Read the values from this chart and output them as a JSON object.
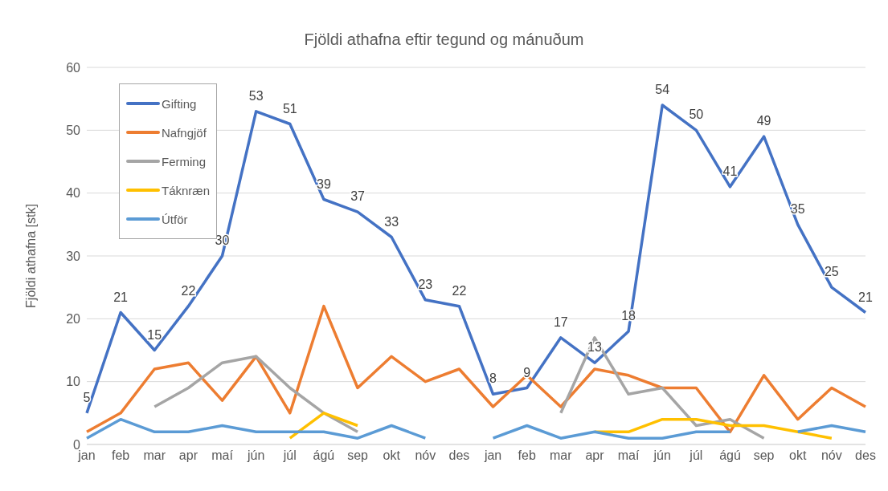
{
  "chart_data": {
    "type": "line",
    "title": "Fjöldi athafna eftir tegund og mánuðum",
    "ylabel": "Fjöldi athafna [stk]",
    "categories": [
      "jan",
      "feb",
      "mar",
      "apr",
      "maí",
      "jún",
      "júl",
      "ágú",
      "sep",
      "okt",
      "nóv",
      "des",
      "jan",
      "feb",
      "mar",
      "apr",
      "maí",
      "jún",
      "júl",
      "ágú",
      "sep",
      "okt",
      "nóv",
      "des"
    ],
    "series": [
      {
        "name": "Gifting",
        "color": "#4472c4",
        "values": [
          5,
          21,
          15,
          22,
          30,
          53,
          51,
          39,
          37,
          33,
          23,
          22,
          8,
          9,
          17,
          13,
          18,
          54,
          50,
          41,
          49,
          35,
          25,
          21
        ],
        "value_labels": [
          "5",
          "21",
          "15",
          "22",
          "30",
          "53",
          "51",
          "39",
          "37",
          "33",
          "23",
          "22",
          "8",
          "9",
          "17",
          "13",
          "18",
          "54",
          "50",
          "41",
          "49",
          "35",
          "25",
          "21"
        ]
      },
      {
        "name": "Nafngjöf",
        "color": "#ed7d31",
        "values": [
          2,
          5,
          12,
          13,
          7,
          14,
          5,
          22,
          9,
          14,
          10,
          12,
          6,
          11,
          6,
          12,
          11,
          9,
          9,
          2,
          11,
          4,
          9,
          6
        ]
      },
      {
        "name": "Ferming",
        "color": "#a5a5a5",
        "values": [
          null,
          null,
          6,
          9,
          13,
          14,
          9,
          5,
          2,
          null,
          null,
          null,
          null,
          null,
          5,
          17,
          8,
          9,
          3,
          4,
          1,
          null,
          null,
          null
        ]
      },
      {
        "name": "Táknræn",
        "color": "#ffc000",
        "values": [
          null,
          null,
          null,
          null,
          null,
          null,
          1,
          5,
          3,
          null,
          null,
          null,
          null,
          null,
          null,
          2,
          2,
          4,
          4,
          3,
          3,
          2,
          1,
          null
        ]
      },
      {
        "name": "Útför",
        "color": "#5b9bd5",
        "values": [
          1,
          4,
          2,
          2,
          3,
          2,
          2,
          2,
          1,
          3,
          1,
          null,
          1,
          3,
          1,
          2,
          1,
          1,
          2,
          2,
          null,
          2,
          3,
          2
        ]
      }
    ],
    "ylim": [
      0,
      60
    ],
    "yticks": [
      0,
      10,
      20,
      30,
      40,
      50,
      60
    ],
    "grid": "y",
    "legend": "top left",
    "marker": "none",
    "line_style": "solid"
  }
}
